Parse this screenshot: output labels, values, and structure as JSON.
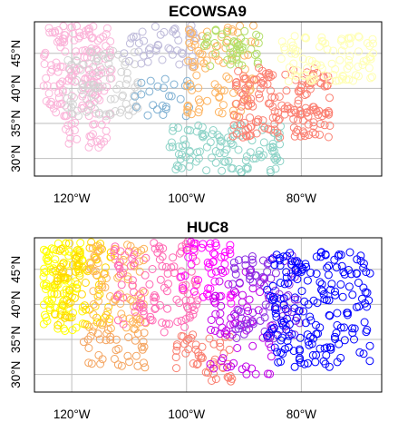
{
  "chart_data": [
    {
      "type": "scatter",
      "title": "ECOWSA9",
      "xlabel": "",
      "ylabel": "",
      "x_ticks": [
        {
          "value": -120,
          "label": "120°W"
        },
        {
          "value": -100,
          "label": "100°W"
        },
        {
          "value": -80,
          "label": "80°W"
        }
      ],
      "y_ticks": [
        {
          "value": 30,
          "label": "30°N"
        },
        {
          "value": 35,
          "label": "35°N"
        },
        {
          "value": 40,
          "label": "40°N"
        },
        {
          "value": 45,
          "label": "45°N"
        }
      ],
      "xlim": [
        -126.5,
        -66
      ],
      "ylim": [
        27.5,
        49.5
      ],
      "grid": true,
      "marker": "open-circle",
      "regions": [
        {
          "color": "#fbb4d9",
          "lon": [
            -125,
            -113
          ],
          "lat": [
            36,
            49.5
          ],
          "n": 170
        },
        {
          "color": "#d3d3d3",
          "lon": [
            -121,
            -108
          ],
          "lat": [
            36,
            45.5
          ],
          "n": 90
        },
        {
          "color": "#fbb4d9",
          "lon": [
            -122,
            -113
          ],
          "lat": [
            31.5,
            35.5
          ],
          "n": 25
        },
        {
          "color": "#bebada",
          "lon": [
            -111,
            -98
          ],
          "lat": [
            43,
            49.5
          ],
          "n": 55
        },
        {
          "color": "#80b1d3",
          "lon": [
            -109,
            -99
          ],
          "lat": [
            36,
            42
          ],
          "n": 25
        },
        {
          "color": "#fdb462",
          "lon": [
            -100,
            -88
          ],
          "lat": [
            36,
            49.5
          ],
          "n": 90
        },
        {
          "color": "#b3de69",
          "lon": [
            -97,
            -87
          ],
          "lat": [
            43,
            48.5
          ],
          "n": 45
        },
        {
          "color": "#8dd3c7",
          "lon": [
            -103,
            -83
          ],
          "lat": [
            28,
            35
          ],
          "n": 110
        },
        {
          "color": "#fb8072",
          "lon": [
            -92,
            -75
          ],
          "lat": [
            33,
            43
          ],
          "n": 170
        },
        {
          "color": "#ffffb3",
          "lon": [
            -84,
            -67
          ],
          "lat": [
            41,
            47.5
          ],
          "n": 90
        }
      ]
    },
    {
      "type": "scatter",
      "title": "HUC8",
      "xlabel": "",
      "ylabel": "",
      "x_ticks": [
        {
          "value": -120,
          "label": "120°W"
        },
        {
          "value": -100,
          "label": "100°W"
        },
        {
          "value": -80,
          "label": "80°W"
        }
      ],
      "y_ticks": [
        {
          "value": 30,
          "label": "30°N"
        },
        {
          "value": 35,
          "label": "35°N"
        },
        {
          "value": 40,
          "label": "40°N"
        },
        {
          "value": 45,
          "label": "45°N"
        }
      ],
      "xlim": [
        -126.5,
        -66
      ],
      "ylim": [
        27.5,
        49.5
      ],
      "grid": true,
      "marker": "open-circle",
      "regions": [
        {
          "color": "#ffff00",
          "lon": [
            -125,
            -118
          ],
          "lat": [
            36,
            49.5
          ],
          "n": 110
        },
        {
          "color": "#ffd700",
          "lon": [
            -123,
            -113
          ],
          "lat": [
            37,
            49.5
          ],
          "n": 90
        },
        {
          "color": "#fdb45a",
          "lon": [
            -117,
            -107
          ],
          "lat": [
            36,
            48.5
          ],
          "n": 80
        },
        {
          "color": "#f4a460",
          "lon": [
            -118,
            -107
          ],
          "lat": [
            31,
            36
          ],
          "n": 35
        },
        {
          "color": "#ff69b4",
          "lon": [
            -113,
            -98
          ],
          "lat": [
            36,
            49.5
          ],
          "n": 120
        },
        {
          "color": "#fa8072",
          "lon": [
            -102,
            -92
          ],
          "lat": [
            29,
            36
          ],
          "n": 50
        },
        {
          "color": "#ff00ff",
          "lon": [
            -101,
            -92
          ],
          "lat": [
            40,
            49
          ],
          "n": 50
        },
        {
          "color": "#c000e8",
          "lon": [
            -96,
            -85
          ],
          "lat": [
            30,
            45
          ],
          "n": 70
        },
        {
          "color": "#8a2be2",
          "lon": [
            -92,
            -80
          ],
          "lat": [
            35,
            47
          ],
          "n": 90
        },
        {
          "color": "#0000ff",
          "lon": [
            -86,
            -68
          ],
          "lat": [
            31,
            47.5
          ],
          "n": 200
        }
      ]
    }
  ]
}
